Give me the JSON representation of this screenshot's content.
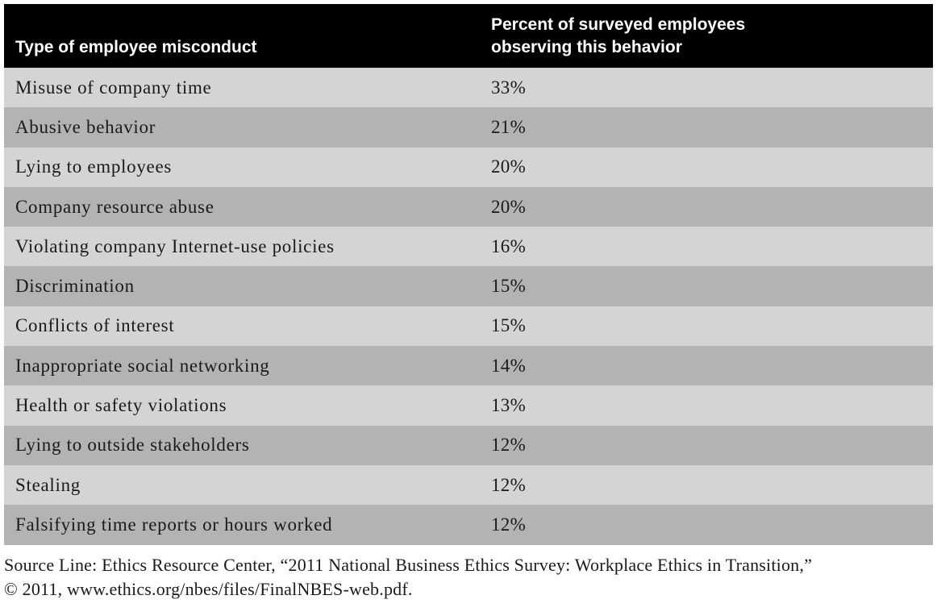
{
  "table": {
    "header": {
      "col1": "Type of employee misconduct",
      "col2_line1": "Percent of surveyed employees",
      "col2_line2": "observing this behavior"
    },
    "rows": [
      {
        "behavior": "Misuse of company time",
        "percent": "33%"
      },
      {
        "behavior": "Abusive behavior",
        "percent": "21%"
      },
      {
        "behavior": "Lying to employees",
        "percent": "20%"
      },
      {
        "behavior": "Company resource abuse",
        "percent": "20%"
      },
      {
        "behavior": "Violating company Internet-use policies",
        "percent": "16%"
      },
      {
        "behavior": "Discrimination",
        "percent": "15%"
      },
      {
        "behavior": "Conflicts of interest",
        "percent": "15%"
      },
      {
        "behavior": "Inappropriate social networking",
        "percent": "14%"
      },
      {
        "behavior": "Health or safety violations",
        "percent": "13%"
      },
      {
        "behavior": "Lying to outside stakeholders",
        "percent": "12%"
      },
      {
        "behavior": "Stealing",
        "percent": "12%"
      },
      {
        "behavior": "Falsifying time reports or hours worked",
        "percent": "12%"
      }
    ],
    "colors": {
      "header_bg": "#000000",
      "row_light": "#d4d4d4",
      "row_dark": "#b3b3b3"
    }
  },
  "source": {
    "line1": "Source Line: Ethics Resource Center, “2011 National Business Ethics Survey: Workplace Ethics in Transition,”",
    "line2": "© 2011, www.ethics.org/nbes/files/FinalNBES-web.pdf."
  }
}
